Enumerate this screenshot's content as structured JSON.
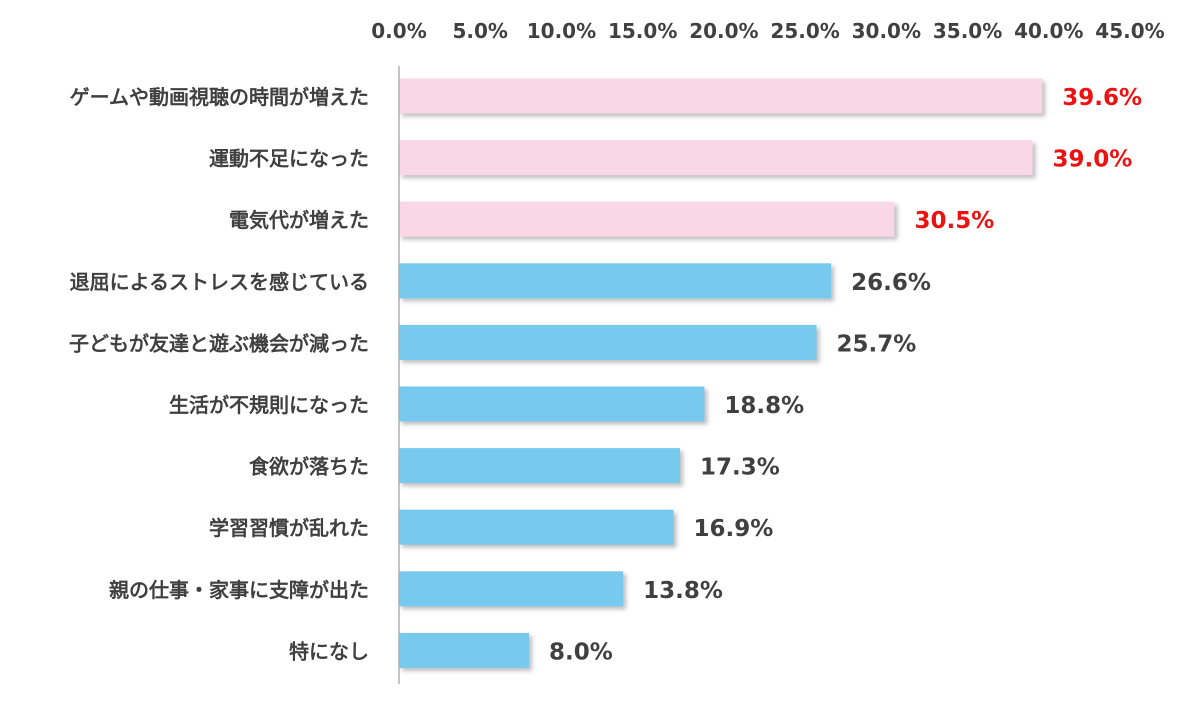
{
  "chart_data": {
    "type": "bar",
    "orientation": "horizontal",
    "categories": [
      "ゲームや動画視聴の時間が増えた",
      "運動不足になった",
      "電気代が増えた",
      "退屈によるストレスを感じている",
      "子どもが友達と遊ぶ機会が減った",
      "生活が不規則になった",
      "食欲が落ちた",
      "学習習慣が乱れた",
      "親の仕事・家事に支障が出た",
      "特になし"
    ],
    "values": [
      39.6,
      39.0,
      30.5,
      26.6,
      25.7,
      18.8,
      17.3,
      16.9,
      13.8,
      8.0
    ],
    "value_labels": [
      "39.6%",
      "39.0%",
      "30.5%",
      "26.6%",
      "25.7%",
      "18.8%",
      "17.3%",
      "16.9%",
      "13.8%",
      "8.0%"
    ],
    "highlighted_top_n": 3,
    "xlim": [
      0,
      45
    ],
    "x_ticks": [
      "0.0%",
      "5.0%",
      "10.0%",
      "15.0%",
      "20.0%",
      "25.0%",
      "30.0%",
      "35.0%",
      "40.0%",
      "45.0%"
    ],
    "x_axis_position": "top",
    "grid": false,
    "legend": "none",
    "title": "",
    "xlabel": "",
    "ylabel": ""
  },
  "colors": {
    "highlight_bar": "#fad7e5",
    "normal_bar": "#78c9ee",
    "highlight_label": "#ee1111",
    "normal_label": "#404040",
    "category_text": "#404040",
    "tick_text": "#404040",
    "axis_line": "#b0b0b0",
    "shadow": "#9a9a9a"
  }
}
